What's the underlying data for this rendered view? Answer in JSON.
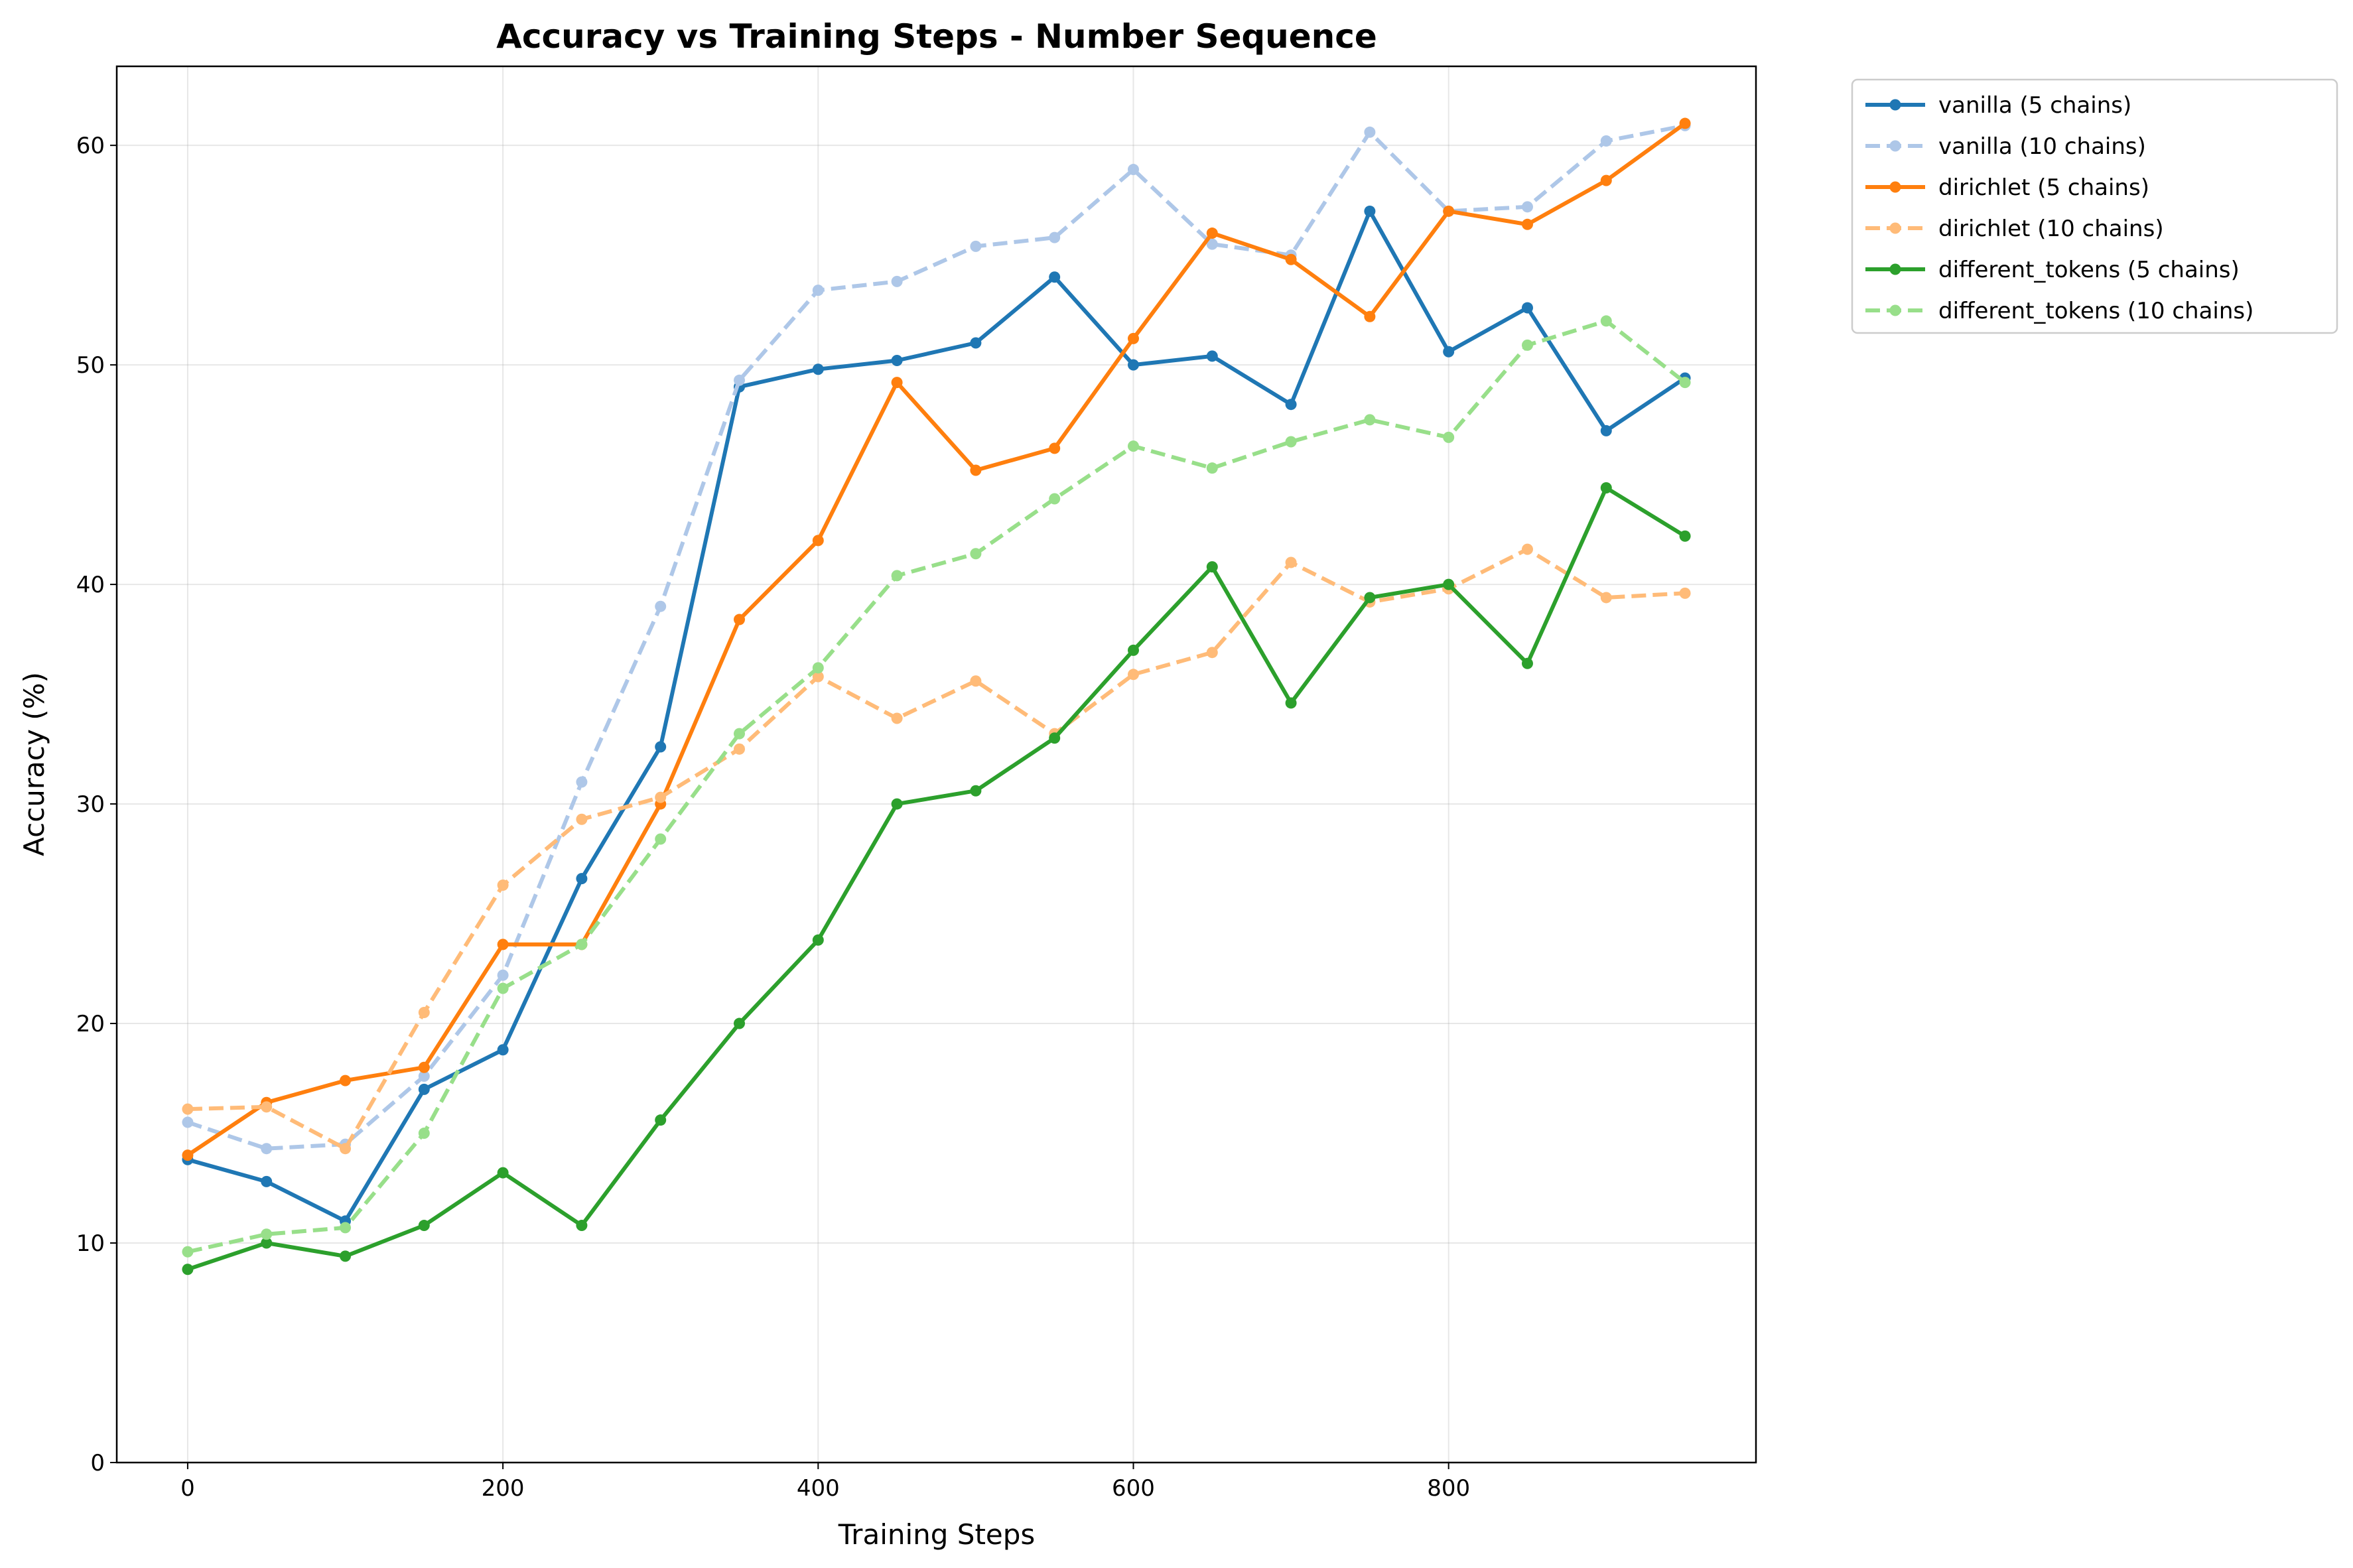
{
  "chart_data": {
    "type": "line",
    "title": "Accuracy vs Training Steps - Number Sequence",
    "xlabel": "Training Steps",
    "ylabel": "Accuracy (%)",
    "xlim": [
      -45,
      995
    ],
    "ylim": [
      0,
      63.6
    ],
    "xticks": [
      0,
      200,
      400,
      600,
      800
    ],
    "yticks": [
      0,
      10,
      20,
      30,
      40,
      50,
      60
    ],
    "grid": true,
    "legend_position": "outside top-right",
    "x": [
      0,
      50,
      100,
      150,
      200,
      250,
      300,
      350,
      400,
      450,
      500,
      550,
      600,
      650,
      700,
      750,
      800,
      850,
      900,
      950
    ],
    "series": [
      {
        "name": "vanilla (5 chains)",
        "color": "#1f77b4",
        "style": "solid",
        "values": [
          13.8,
          12.8,
          11.0,
          17.0,
          18.8,
          26.6,
          32.6,
          49.0,
          49.8,
          50.2,
          51.0,
          54.0,
          50.0,
          50.4,
          48.2,
          57.0,
          50.6,
          52.6,
          47.0,
          49.4
        ]
      },
      {
        "name": "vanilla (10 chains)",
        "color": "#aec7e8",
        "style": "dashed",
        "values": [
          15.5,
          14.3,
          14.5,
          17.6,
          22.2,
          31.0,
          39.0,
          49.3,
          53.4,
          53.8,
          55.4,
          55.8,
          58.9,
          55.5,
          55.0,
          60.6,
          57.0,
          57.2,
          60.2,
          60.9
        ]
      },
      {
        "name": "dirichlet (5 chains)",
        "color": "#ff7f0e",
        "style": "solid",
        "values": [
          14.0,
          16.4,
          17.4,
          18.0,
          23.6,
          23.6,
          30.0,
          38.4,
          42.0,
          49.2,
          45.2,
          46.2,
          51.2,
          56.0,
          54.8,
          52.2,
          57.0,
          56.4,
          58.4,
          61.0
        ]
      },
      {
        "name": "dirichlet (10 chains)",
        "color": "#ffbb78",
        "style": "dashed",
        "values": [
          16.1,
          16.2,
          14.3,
          20.5,
          26.3,
          29.3,
          30.3,
          32.5,
          35.8,
          33.9,
          35.6,
          33.2,
          35.9,
          36.9,
          41.0,
          39.2,
          39.8,
          41.6,
          39.4,
          39.6
        ]
      },
      {
        "name": "different_tokens (5 chains)",
        "color": "#2ca02c",
        "style": "solid",
        "values": [
          8.8,
          10.0,
          9.4,
          10.8,
          13.2,
          10.8,
          15.6,
          20.0,
          23.8,
          30.0,
          30.6,
          33.0,
          37.0,
          40.8,
          34.6,
          39.4,
          40.0,
          36.4,
          44.4,
          42.2
        ]
      },
      {
        "name": "different_tokens (10 chains)",
        "color": "#98df8a",
        "style": "dashed",
        "values": [
          9.6,
          10.4,
          10.7,
          15.0,
          21.6,
          23.6,
          28.4,
          33.2,
          36.2,
          40.4,
          41.4,
          43.9,
          46.3,
          45.3,
          46.5,
          47.5,
          46.7,
          50.9,
          52.0,
          49.2
        ]
      }
    ]
  }
}
